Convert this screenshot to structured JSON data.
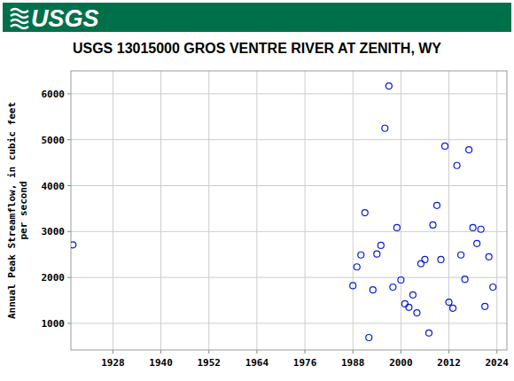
{
  "header": {
    "logo": "USGS"
  },
  "chart_data": {
    "type": "scatter",
    "title": "USGS 13015000 GROS VENTRE RIVER AT ZENITH, WY",
    "y_label": "Annual Peak Streamflow, in cubic feet\nper second",
    "x": [
      1918,
      1988,
      1989,
      1990,
      1991,
      1992,
      1993,
      1994,
      1995,
      1996,
      1997,
      1998,
      1999,
      2000,
      2001,
      2002,
      2003,
      2004,
      2005,
      2006,
      2007,
      2008,
      2009,
      2010,
      2011,
      2012,
      2013,
      2014,
      2015,
      2016,
      2017,
      2018,
      2019,
      2020,
      2021,
      2022,
      2023
    ],
    "values": [
      2710,
      1820,
      2230,
      2490,
      3410,
      690,
      1730,
      2510,
      2700,
      5250,
      6170,
      1790,
      3085,
      1945,
      1425,
      1350,
      1620,
      1230,
      2300,
      2390,
      790,
      3145,
      3570,
      2390,
      4860,
      1460,
      1330,
      4440,
      2490,
      1960,
      4780,
      3085,
      2740,
      3050,
      1370,
      2450,
      1790
    ],
    "color": "#0a1ed2",
    "marker": "open-circle",
    "xlim": [
      1917.5,
      2026.5
    ],
    "ylim": [
      420,
      6500
    ],
    "xticks": [
      1928,
      1940,
      1952,
      1964,
      1976,
      1988,
      2000,
      2012,
      2024
    ],
    "yticks": [
      1000,
      2000,
      3000,
      4000,
      5000,
      6000
    ],
    "grid": true
  }
}
